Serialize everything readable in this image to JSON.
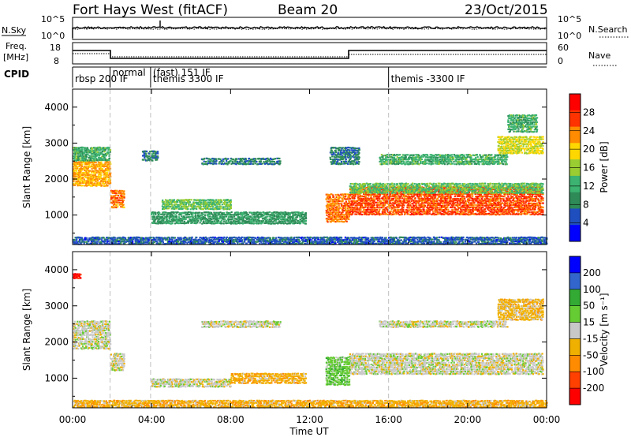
{
  "header": {
    "station": "Fort Hays West (fitACF)",
    "beam": "Beam 20",
    "date": "23/Oct/2015"
  },
  "panels": {
    "nsky": {
      "label": "N.Sky",
      "right_label": "N.Search",
      "ticks_left": [
        "10^5",
        "10^0"
      ],
      "ticks_right": [
        "10^5",
        "10^0"
      ]
    },
    "freq": {
      "label_line1": "Freq.",
      "label_line2": "[MHz]",
      "right_label": "Nave",
      "ticks_left": [
        "18",
        "8"
      ],
      "ticks_right": [
        "60",
        "0"
      ]
    },
    "cpid": {
      "label": "CPID",
      "segments": [
        {
          "start_h": 0.0,
          "text": "rbsp 200 IF"
        },
        {
          "start_h": 1.9,
          "text": "normal"
        },
        {
          "start_h": 3.95,
          "text": "(fast) 151 IF"
        },
        {
          "start_h": 3.95,
          "text": "themis 3300 IF"
        },
        {
          "start_h": 16.0,
          "text": "themis -3300 IF"
        }
      ]
    }
  },
  "power_panel": {
    "ylabel": "Slant Range [km]",
    "colorbar_label": "Power [dB]",
    "colorbar_ticks": [
      "28",
      "24",
      "20",
      "16",
      "12",
      "8",
      "4"
    ]
  },
  "velocity_panel": {
    "ylabel": "Slant Range [km]",
    "colorbar_label": "Velocity [m s⁻¹]",
    "colorbar_ticks": [
      "200",
      "100",
      "50",
      "15",
      "-15",
      "-50",
      "-100",
      "-200"
    ]
  },
  "xaxis": {
    "label": "Time UT",
    "ticks": [
      "00:00",
      "04:00",
      "08:00",
      "12:00",
      "16:00",
      "20:00",
      "00:00"
    ]
  },
  "colors": {
    "power_scale": [
      "#0000ff",
      "#1f4fbf",
      "#2e8b57",
      "#3cb371",
      "#9acd32",
      "#ffd700",
      "#ff8c00",
      "#ff3300",
      "#ff0000"
    ],
    "velocity_scale": [
      "#ff0000",
      "#ff4000",
      "#ff8c00",
      "#f0b000",
      "#c8c8c8",
      "#66cc33",
      "#33aa33",
      "#3366cc",
      "#0000ff"
    ]
  },
  "chart_data": [
    {
      "type": "heatmap",
      "name_hint": "power",
      "xlabel": "Time UT",
      "ylabel": "Slant Range [km]",
      "xlim": [
        0,
        24
      ],
      "ylim": [
        180,
        4500
      ],
      "yticks": [
        1000,
        2000,
        3000,
        4000
      ],
      "zlabel": "Power [dB]",
      "zlim": [
        0,
        32
      ],
      "dashed_lines_h": [
        1.9,
        3.95,
        16.0
      ],
      "bands": [
        {
          "t": [
            0.0,
            1.9
          ],
          "r": [
            1800,
            2500
          ],
          "z": 22
        },
        {
          "t": [
            0.0,
            1.9
          ],
          "r": [
            2500,
            2900
          ],
          "z": 12
        },
        {
          "t": [
            1.9,
            2.6
          ],
          "r": [
            1200,
            1700
          ],
          "z": 24
        },
        {
          "t": [
            3.5,
            4.3
          ],
          "r": [
            2500,
            2800
          ],
          "z": 8
        },
        {
          "t": [
            3.95,
            11.8
          ],
          "r": [
            750,
            1100
          ],
          "z": 10
        },
        {
          "t": [
            4.5,
            8.0
          ],
          "r": [
            1150,
            1450
          ],
          "z": 14
        },
        {
          "t": [
            6.5,
            10.5
          ],
          "r": [
            2400,
            2600
          ],
          "z": 8
        },
        {
          "t": [
            12.8,
            14.0
          ],
          "r": [
            800,
            1600
          ],
          "z": 24
        },
        {
          "t": [
            13.0,
            14.5
          ],
          "r": [
            2400,
            2900
          ],
          "z": 8
        },
        {
          "t": [
            14.0,
            23.8
          ],
          "r": [
            1000,
            1800
          ],
          "z": 26
        },
        {
          "t": [
            14.0,
            23.8
          ],
          "r": [
            1600,
            1900
          ],
          "z": 14
        },
        {
          "t": [
            15.5,
            22.0
          ],
          "r": [
            2400,
            2700
          ],
          "z": 12
        },
        {
          "t": [
            21.5,
            23.8
          ],
          "r": [
            2700,
            3200
          ],
          "z": 18
        },
        {
          "t": [
            22.0,
            23.5
          ],
          "r": [
            3300,
            3800
          ],
          "z": 12
        },
        {
          "t": [
            0.0,
            24.0
          ],
          "r": [
            180,
            400
          ],
          "z": 6
        }
      ]
    },
    {
      "type": "heatmap",
      "name_hint": "velocity",
      "xlabel": "Time UT",
      "ylabel": "Slant Range [km]",
      "xlim": [
        0,
        24
      ],
      "ylim": [
        180,
        4500
      ],
      "yticks": [
        1000,
        2000,
        3000,
        4000
      ],
      "zlabel": "Velocity [m s⁻¹]",
      "zlim": [
        -250,
        250
      ],
      "dashed_lines_h": [
        1.9,
        3.95,
        16.0
      ],
      "bands": [
        {
          "t": [
            0.0,
            1.9
          ],
          "r": [
            1800,
            2600
          ],
          "z": 0
        },
        {
          "t": [
            1.9,
            2.6
          ],
          "r": [
            1200,
            1700
          ],
          "z": 0
        },
        {
          "t": [
            3.95,
            8.0
          ],
          "r": [
            750,
            1000
          ],
          "z": 0
        },
        {
          "t": [
            8.0,
            11.8
          ],
          "r": [
            850,
            1150
          ],
          "z": -60
        },
        {
          "t": [
            6.5,
            10.5
          ],
          "r": [
            2400,
            2600
          ],
          "z": 0
        },
        {
          "t": [
            12.8,
            14.0
          ],
          "r": [
            800,
            1600
          ],
          "z": 60
        },
        {
          "t": [
            14.0,
            23.8
          ],
          "r": [
            1100,
            1700
          ],
          "z": 0
        },
        {
          "t": [
            15.5,
            22.0
          ],
          "r": [
            2400,
            2600
          ],
          "z": 0
        },
        {
          "t": [
            21.5,
            23.8
          ],
          "r": [
            2600,
            3200
          ],
          "z": -50
        },
        {
          "t": [
            0.0,
            24.0
          ],
          "r": [
            180,
            400
          ],
          "z": -60
        },
        {
          "t": [
            0.0,
            0.4
          ],
          "r": [
            3750,
            3900
          ],
          "z": -220
        }
      ]
    }
  ]
}
